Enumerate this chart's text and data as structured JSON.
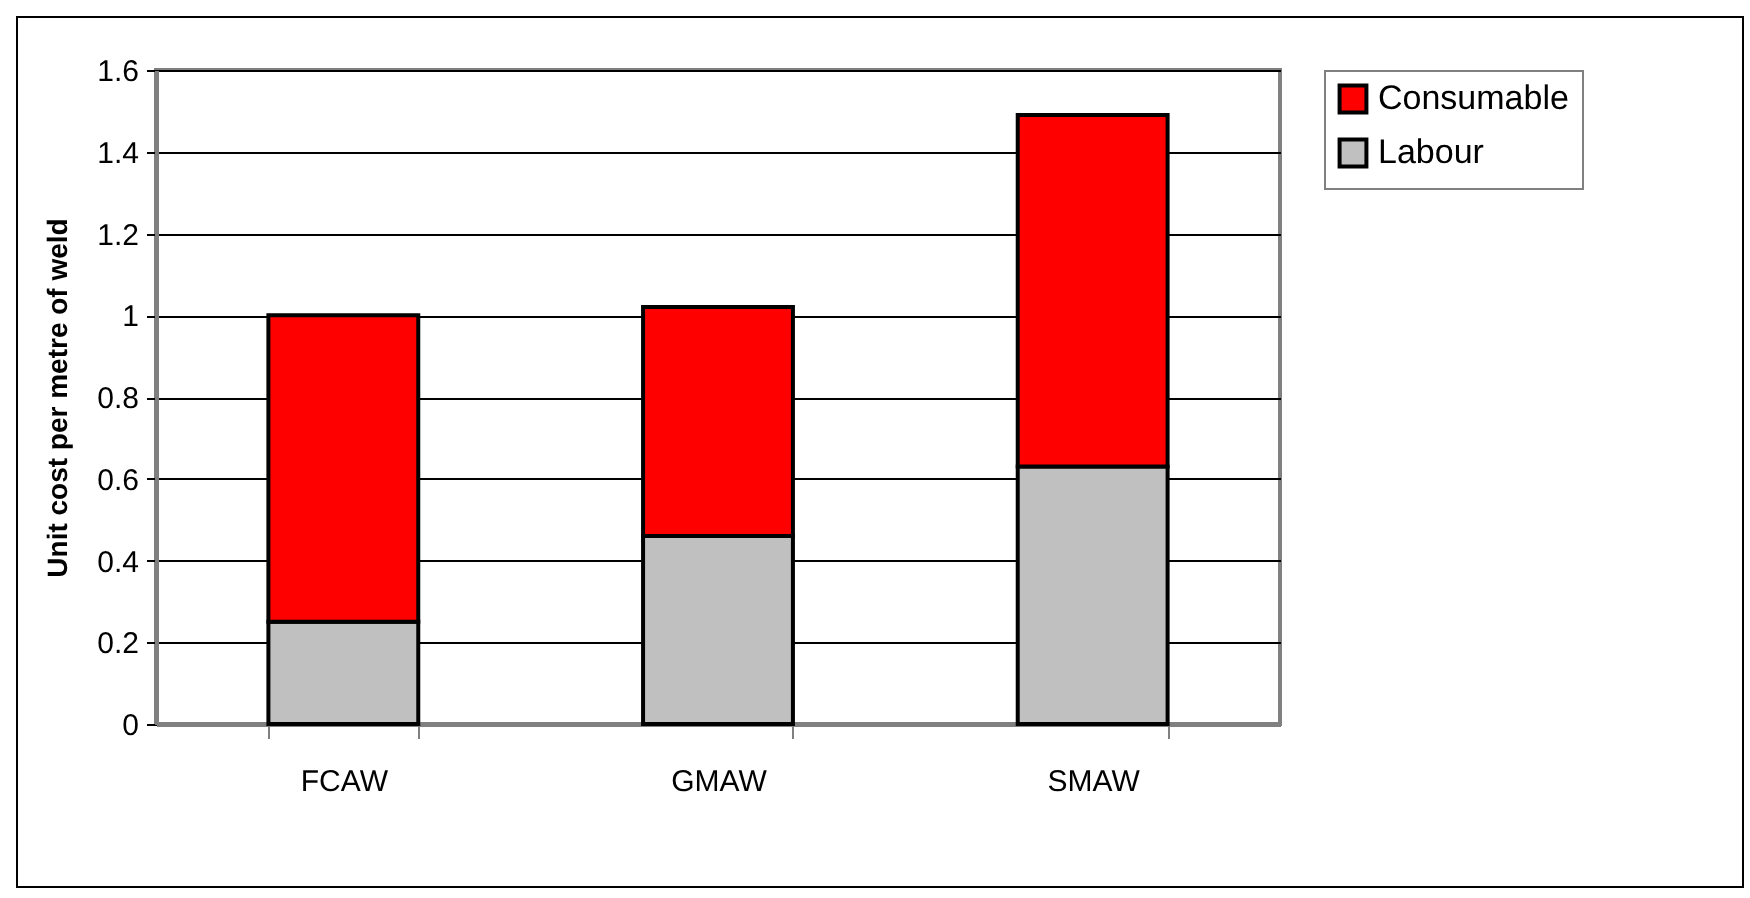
{
  "chart_data": {
    "type": "bar",
    "ylabel": "Unit cost per metre of weld",
    "categories": [
      "FCAW",
      "GMAW",
      "SMAW"
    ],
    "series": [
      {
        "name": "Labour",
        "color": "#c0c0c0",
        "values": [
          0.25,
          0.46,
          0.63
        ]
      },
      {
        "name": "Consumable",
        "color": "#ff0000",
        "values": [
          0.75,
          0.56,
          0.86
        ]
      }
    ],
    "stacked": true,
    "ylim": [
      0,
      1.6
    ],
    "yticks": [
      0,
      0.2,
      0.4,
      0.6,
      0.8,
      1,
      1.2,
      1.4,
      1.6
    ],
    "grid": "y",
    "legend": "right"
  }
}
